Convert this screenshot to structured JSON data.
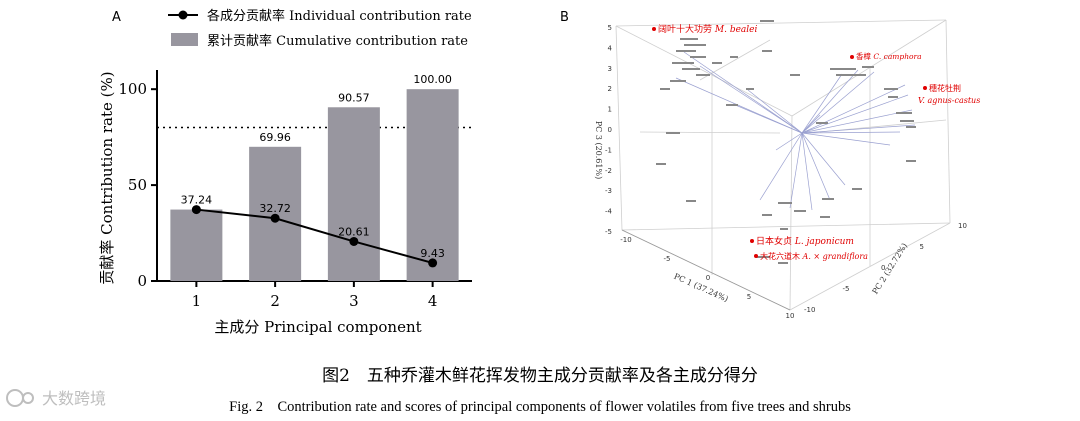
{
  "panel_a": {
    "label": "A",
    "legend": {
      "individual": "各成分贡献率  Individual contribution rate",
      "cumulative": "累计贡献率  Cumulative contribution rate"
    },
    "threshold": 80
  },
  "chart_data": {
    "type": "bar",
    "categories": [
      "1",
      "2",
      "3",
      "4"
    ],
    "series": [
      {
        "name": "Cumulative contribution rate",
        "kind": "bar",
        "values": [
          37.24,
          69.96,
          90.57,
          100.0
        ],
        "labels": [
          "",
          "69.96",
          "90.57",
          "100.00"
        ],
        "color": "#98969f"
      },
      {
        "name": "Individual contribution rate",
        "kind": "line",
        "values": [
          37.24,
          32.72,
          20.61,
          9.43
        ],
        "labels": [
          "37.24",
          "32.72",
          "20.61",
          "9.43"
        ],
        "color": "#000000"
      }
    ],
    "xlabel": "主成分  Principal component",
    "ylabel": "贡献率  Contribution rate (%)",
    "ylim": [
      0,
      110
    ],
    "yticks": [
      0,
      50,
      100
    ],
    "reference_line": 80
  },
  "panel_b": {
    "label": "B",
    "axes": {
      "pc3": "PC 3 (20.61%)",
      "pc1": "PC 1 (37.24%)",
      "pc2": "PC 2 (32.72%)"
    },
    "z_ticks": [
      "5",
      "4",
      "3",
      "2",
      "1",
      "0",
      "-1",
      "-2",
      "-3",
      "-4",
      "-5"
    ],
    "pc1_ticks": [
      "-10",
      "-5",
      "0",
      "5",
      "10"
    ],
    "pc2_ticks": [
      "-10",
      "-5",
      "0",
      "5",
      "10"
    ],
    "species": [
      {
        "name": "阔叶十大功劳",
        "latin": "M. bealei"
      },
      {
        "name": "香樟",
        "latin": "C. camphora"
      },
      {
        "name": "穗花牡荆",
        "latin": "V. agnus-castus"
      },
      {
        "name": "日本女贞",
        "latin": "L. japonicum"
      },
      {
        "name": "大花六道木",
        "latin": "A. × grandiflora"
      }
    ]
  },
  "caption": {
    "cn": "图2　五种乔灌木鲜花挥发物主成分贡献率及各主成分得分",
    "en": "Fig. 2　Contribution rate and scores of principal components of flower volatiles from five trees and shrubs"
  },
  "watermark": "大数跨境"
}
